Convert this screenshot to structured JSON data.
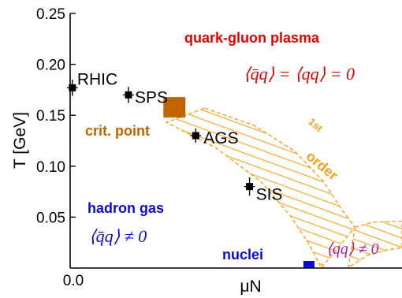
{
  "chart_data": {
    "type": "scatter",
    "title": "",
    "xlabel": "μN",
    "ylabel": "T [GeV]",
    "xlim": [
      0,
      1.48
    ],
    "ylim": [
      0,
      0.25
    ],
    "x_ticks": [
      {
        "v": 0.0,
        "label": "0.0"
      }
    ],
    "y_ticks": [
      {
        "v": 0.05,
        "label": "0.05"
      },
      {
        "v": 0.1,
        "label": "0.10"
      },
      {
        "v": 0.15,
        "label": "0.15"
      },
      {
        "v": 0.2,
        "label": "0.20"
      },
      {
        "v": 0.25,
        "label": "0.25"
      }
    ],
    "points": [
      {
        "label": "RHIC",
        "x": 0.01,
        "y": 0.177,
        "yerr": 0.008
      },
      {
        "label": "SPS",
        "x": 0.26,
        "y": 0.17,
        "yerr": 0.008
      },
      {
        "label": "AGS",
        "x": 0.56,
        "y": 0.13,
        "yerr": 0.007
      },
      {
        "label": "SIS",
        "x": 0.8,
        "y": 0.08,
        "yerr": 0.009
      }
    ],
    "critical_point": {
      "label": "crit. point",
      "x": 0.465,
      "y": 0.157,
      "color": "#c06400"
    },
    "nuclei": {
      "label": "nuclei",
      "x": 1.065,
      "y": 0.002,
      "color": "#0a0adc"
    },
    "transition_band": {
      "label_super": "1st",
      "label": "order",
      "color": "#f5a21c",
      "upper": [
        [
          0.6,
          0.157
        ],
        [
          0.82,
          0.14
        ],
        [
          1.0,
          0.115
        ],
        [
          1.13,
          0.085
        ],
        [
          1.22,
          0.055
        ],
        [
          1.27,
          0.04
        ]
      ],
      "lower": [
        [
          0.43,
          0.143
        ],
        [
          0.65,
          0.118
        ],
        [
          0.85,
          0.085
        ],
        [
          0.98,
          0.052
        ],
        [
          1.07,
          0.022
        ],
        [
          1.12,
          0.0
        ]
      ],
      "tail_upper": [
        [
          1.27,
          0.04
        ],
        [
          1.35,
          0.045
        ],
        [
          1.45,
          0.046
        ],
        [
          1.48,
          0.046
        ]
      ],
      "tail_lower": [
        [
          1.24,
          0.0
        ],
        [
          1.32,
          0.012
        ],
        [
          1.42,
          0.018
        ],
        [
          1.48,
          0.02
        ]
      ]
    },
    "regions": [
      {
        "label": "quark-gluon plasma",
        "color": "#e00000"
      },
      {
        "label": "hadron gas",
        "color": "#0a0adc"
      }
    ],
    "annotations": [
      {
        "text": "⟨q̄q⟩ = ⟨qq⟩ = 0",
        "color": "#e00000"
      },
      {
        "text": "⟨q̄q⟩ ≠ 0",
        "color": "#0a0adc"
      },
      {
        "text": "⟨qq⟩ ≠ 0",
        "color": "#a020a0"
      }
    ]
  }
}
